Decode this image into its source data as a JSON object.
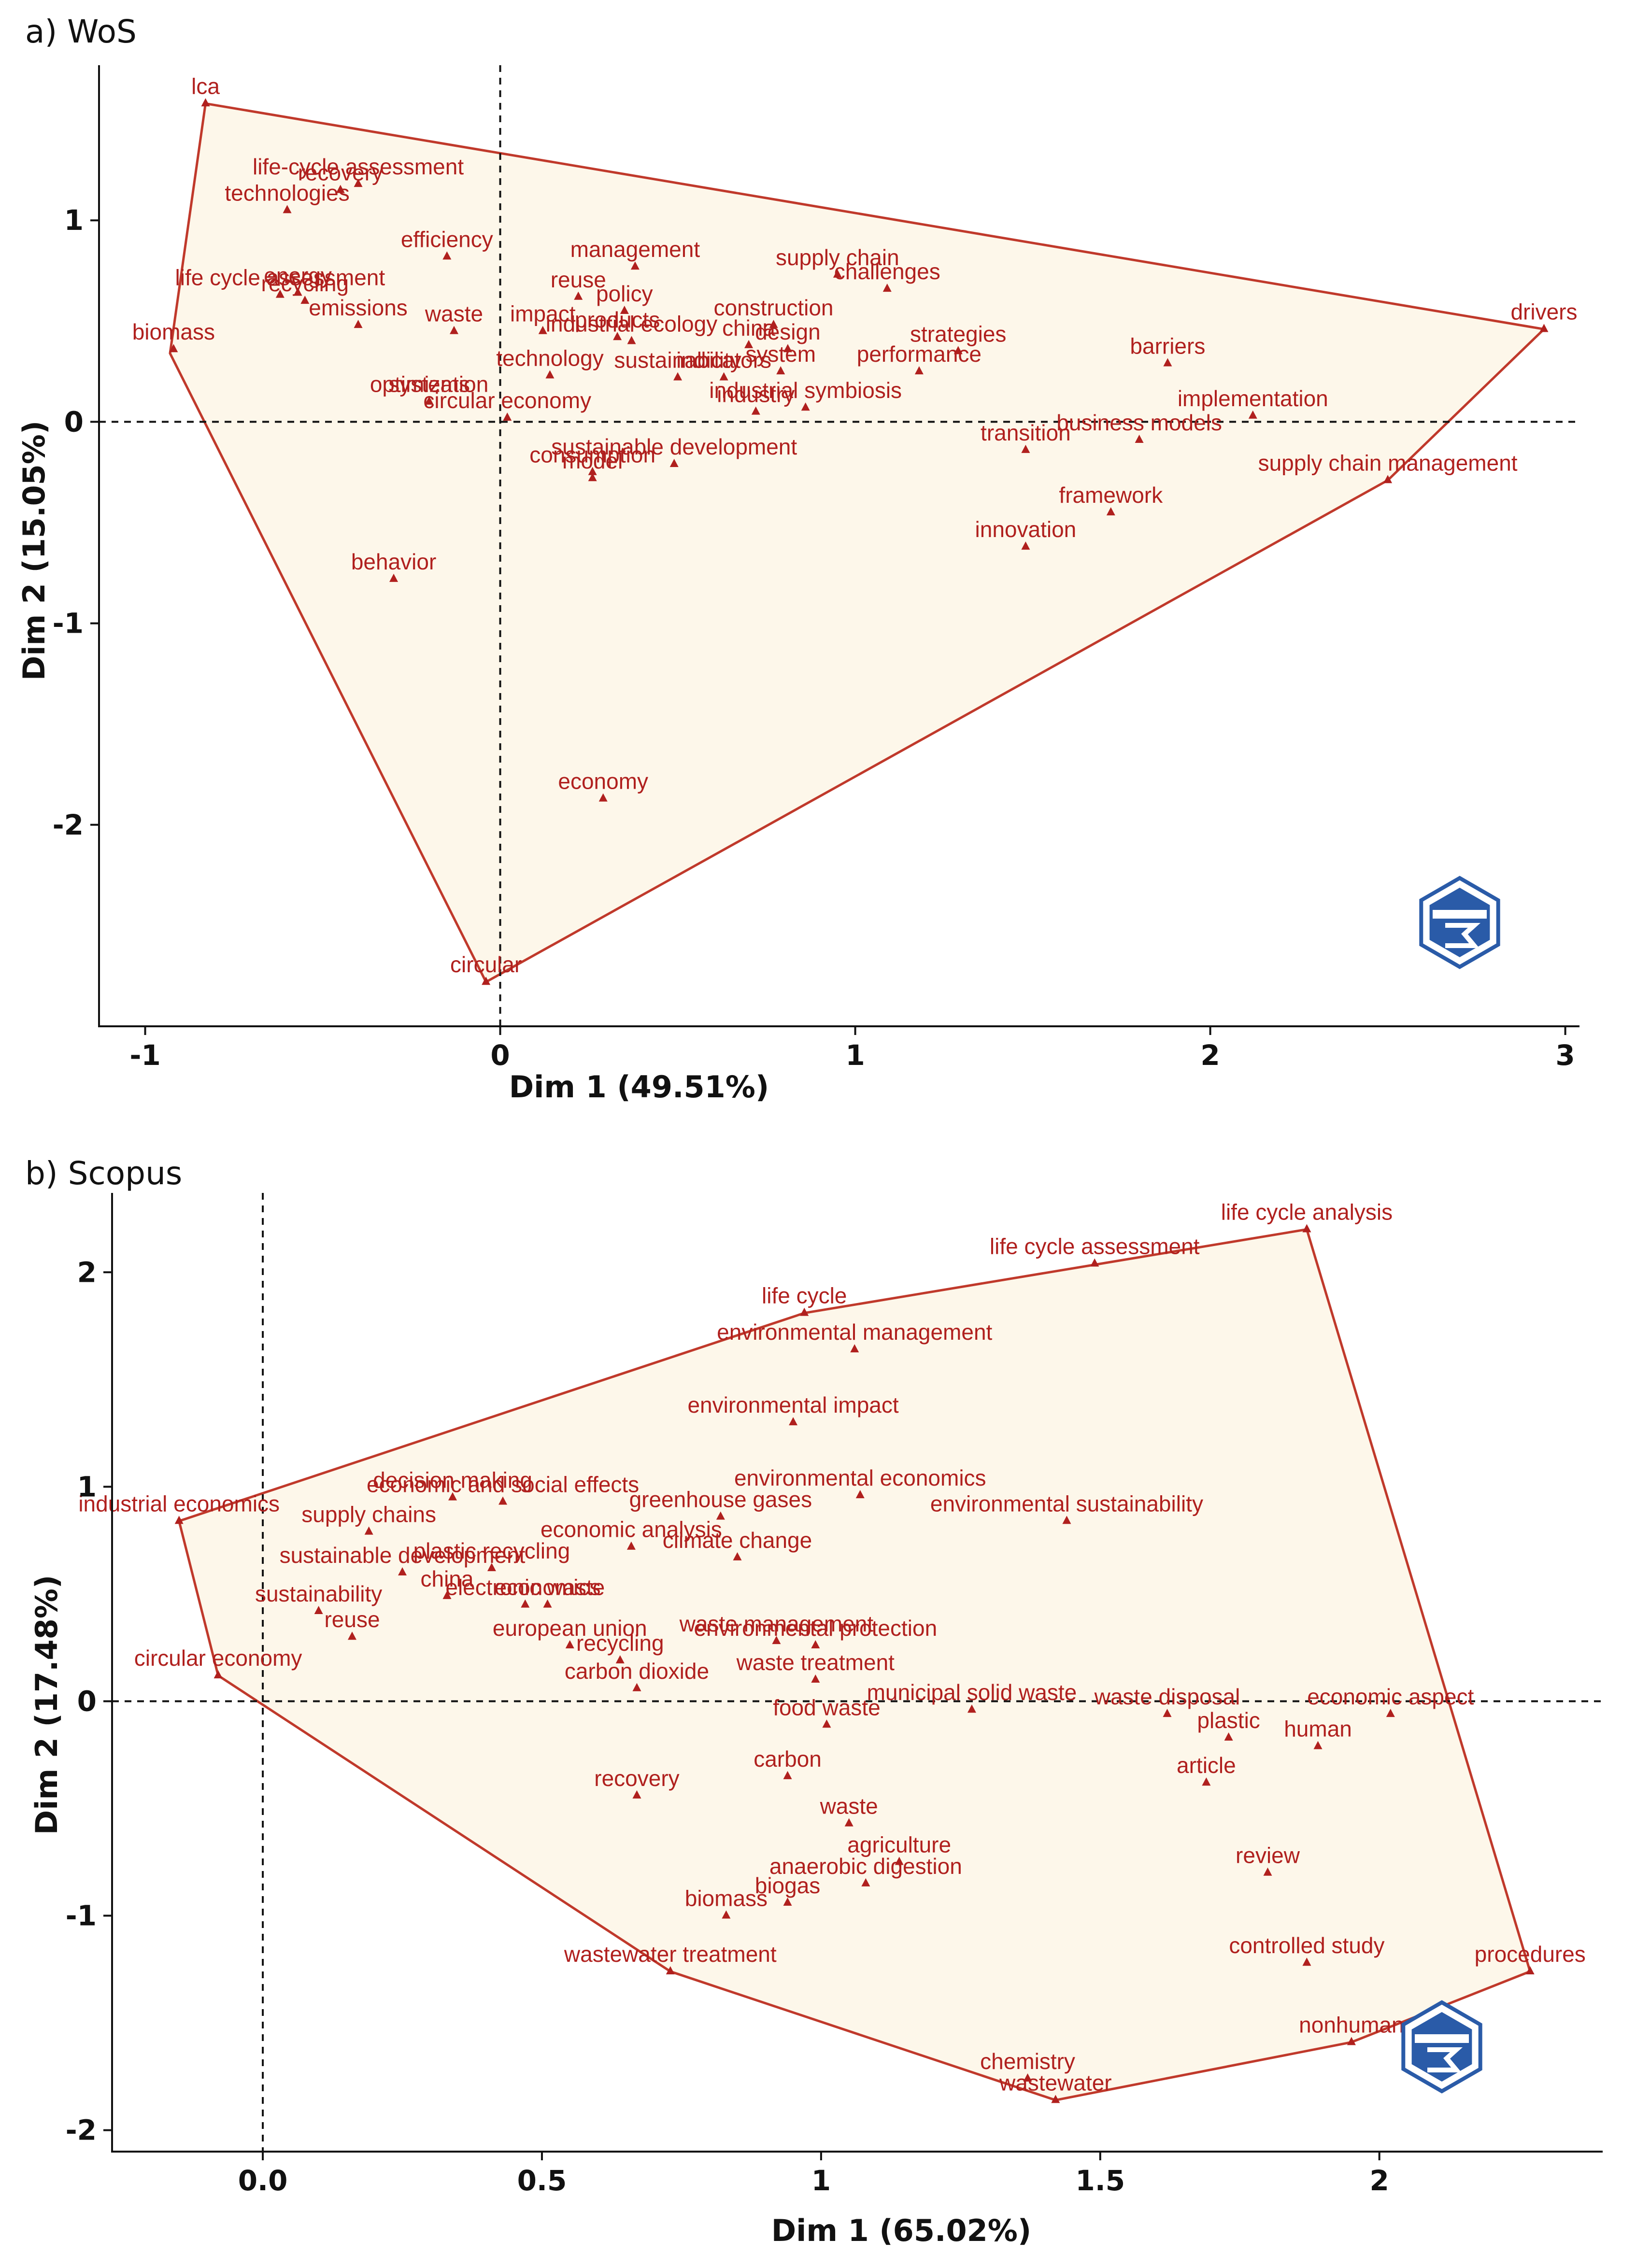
{
  "colors": {
    "accent": "#b0201e",
    "hull_fill": "#fdf7ea",
    "hull_stroke": "#c0392b",
    "logo": "#2a5ba8"
  },
  "logo_icon": "biblioshiny-logo-icon",
  "chart_data": [
    {
      "type": "scatter",
      "title": "a) WoS",
      "xlabel": "Dim 1 (49.51%)",
      "ylabel": "Dim 2 (15.05%)",
      "xlim": [
        -1.13,
        3.04
      ],
      "ylim": [
        -3.0,
        1.77
      ],
      "xticks": [
        -1,
        0,
        1,
        2,
        3
      ],
      "yticks": [
        -2,
        -1,
        0,
        1
      ],
      "grid": false,
      "reference_lines": {
        "x": 0,
        "y": 0
      },
      "hull": [
        [
          -0.83,
          1.58
        ],
        [
          2.94,
          0.46
        ],
        [
          2.5,
          -0.29
        ],
        [
          -0.04,
          -2.78
        ],
        [
          -0.93,
          0.34
        ]
      ],
      "points": [
        {
          "label": "lca",
          "x": -0.83,
          "y": 1.58
        },
        {
          "label": "life-cycle assessment",
          "x": -0.4,
          "y": 1.18
        },
        {
          "label": "recovery",
          "x": -0.45,
          "y": 1.15
        },
        {
          "label": "technologies",
          "x": -0.6,
          "y": 1.05
        },
        {
          "label": "efficiency",
          "x": -0.15,
          "y": 0.82
        },
        {
          "label": "energy",
          "x": -0.57,
          "y": 0.64
        },
        {
          "label": "life cycle assessment",
          "x": -0.62,
          "y": 0.63
        },
        {
          "label": "recycling",
          "x": -0.55,
          "y": 0.6
        },
        {
          "label": "biomass",
          "x": -0.92,
          "y": 0.36
        },
        {
          "label": "emissions",
          "x": -0.4,
          "y": 0.48
        },
        {
          "label": "waste",
          "x": -0.13,
          "y": 0.45
        },
        {
          "label": "systems",
          "x": -0.2,
          "y": 0.1
        },
        {
          "label": "optimization",
          "x": -0.2,
          "y": 0.1
        },
        {
          "label": "impact",
          "x": 0.12,
          "y": 0.45
        },
        {
          "label": "technology",
          "x": 0.14,
          "y": 0.23
        },
        {
          "label": "circular economy",
          "x": 0.02,
          "y": 0.02
        },
        {
          "label": "reuse",
          "x": 0.22,
          "y": 0.62
        },
        {
          "label": "management",
          "x": 0.38,
          "y": 0.77
        },
        {
          "label": "products",
          "x": 0.33,
          "y": 0.42
        },
        {
          "label": "policy",
          "x": 0.35,
          "y": 0.55
        },
        {
          "label": "industrial ecology",
          "x": 0.37,
          "y": 0.4
        },
        {
          "label": "consumption",
          "x": 0.26,
          "y": -0.25
        },
        {
          "label": "model",
          "x": 0.26,
          "y": -0.28
        },
        {
          "label": "sustainability",
          "x": 0.5,
          "y": 0.22
        },
        {
          "label": "indicators",
          "x": 0.63,
          "y": 0.22
        },
        {
          "label": "china",
          "x": 0.7,
          "y": 0.38
        },
        {
          "label": "supply chain",
          "x": 0.95,
          "y": 0.73
        },
        {
          "label": "construction",
          "x": 0.77,
          "y": 0.48
        },
        {
          "label": "design",
          "x": 0.81,
          "y": 0.36
        },
        {
          "label": "challenges",
          "x": 1.09,
          "y": 0.66
        },
        {
          "label": "system",
          "x": 0.79,
          "y": 0.25
        },
        {
          "label": "industry",
          "x": 0.72,
          "y": 0.05
        },
        {
          "label": "industrial symbiosis",
          "x": 0.86,
          "y": 0.07
        },
        {
          "label": "sustainable development",
          "x": 0.49,
          "y": -0.21
        },
        {
          "label": "strategies",
          "x": 1.29,
          "y": 0.35
        },
        {
          "label": "performance",
          "x": 1.18,
          "y": 0.25
        },
        {
          "label": "transition",
          "x": 1.48,
          "y": -0.14
        },
        {
          "label": "innovation",
          "x": 1.48,
          "y": -0.62
        },
        {
          "label": "barriers",
          "x": 1.88,
          "y": 0.29
        },
        {
          "label": "implementation",
          "x": 2.12,
          "y": 0.03
        },
        {
          "label": "business models",
          "x": 1.8,
          "y": -0.09
        },
        {
          "label": "framework",
          "x": 1.72,
          "y": -0.45
        },
        {
          "label": "drivers",
          "x": 2.94,
          "y": 0.46
        },
        {
          "label": "supply chain management",
          "x": 2.5,
          "y": -0.29
        },
        {
          "label": "behavior",
          "x": -0.3,
          "y": -0.78
        },
        {
          "label": "economy",
          "x": 0.29,
          "y": -1.87
        },
        {
          "label": "circular",
          "x": -0.04,
          "y": -2.78
        }
      ]
    },
    {
      "type": "scatter",
      "title": "b) Scopus",
      "xlabel": "Dim 1 (65.02%)",
      "ylabel": "Dim 2 (17.48%)",
      "xlim": [
        -0.27,
        2.4
      ],
      "ylim": [
        -2.1,
        2.37
      ],
      "xticks": [
        0.0,
        0.5,
        1.0,
        1.5,
        2.0
      ],
      "xtick_labels": [
        "0.0",
        "0.5",
        "1",
        "1.5",
        "2"
      ],
      "yticks": [
        -2,
        -1,
        0,
        1,
        2
      ],
      "grid": false,
      "reference_lines": {
        "x": 0,
        "y": 0
      },
      "hull": [
        [
          -0.15,
          0.84
        ],
        [
          0.97,
          1.81
        ],
        [
          1.87,
          2.2
        ],
        [
          2.27,
          -1.26
        ],
        [
          1.95,
          -1.59
        ],
        [
          1.42,
          -1.86
        ],
        [
          0.73,
          -1.26
        ],
        [
          -0.08,
          0.12
        ]
      ],
      "points": [
        {
          "label": "life cycle analysis",
          "x": 1.87,
          "y": 2.2
        },
        {
          "label": "life cycle assessment",
          "x": 1.49,
          "y": 2.04
        },
        {
          "label": "life cycle",
          "x": 0.97,
          "y": 1.81
        },
        {
          "label": "environmental management",
          "x": 1.06,
          "y": 1.64
        },
        {
          "label": "environmental impact",
          "x": 0.95,
          "y": 1.3
        },
        {
          "label": "decision making",
          "x": 0.34,
          "y": 0.95
        },
        {
          "label": "economic and social effects",
          "x": 0.43,
          "y": 0.93
        },
        {
          "label": "environmental economics",
          "x": 1.07,
          "y": 0.96
        },
        {
          "label": "industrial economics",
          "x": -0.15,
          "y": 0.84
        },
        {
          "label": "supply chains",
          "x": 0.19,
          "y": 0.79
        },
        {
          "label": "economic analysis",
          "x": 0.66,
          "y": 0.72
        },
        {
          "label": "greenhouse gases",
          "x": 0.82,
          "y": 0.86
        },
        {
          "label": "environmental sustainability",
          "x": 1.44,
          "y": 0.84
        },
        {
          "label": "sustainable development",
          "x": 0.25,
          "y": 0.6
        },
        {
          "label": "plastic recycling",
          "x": 0.41,
          "y": 0.62
        },
        {
          "label": "climate change",
          "x": 0.85,
          "y": 0.67
        },
        {
          "label": "sustainability",
          "x": 0.1,
          "y": 0.42
        },
        {
          "label": "china",
          "x": 0.33,
          "y": 0.49
        },
        {
          "label": "economics",
          "x": 0.51,
          "y": 0.45
        },
        {
          "label": "electronic waste",
          "x": 0.47,
          "y": 0.45
        },
        {
          "label": "european union",
          "x": 0.55,
          "y": 0.26
        },
        {
          "label": "reuse",
          "x": 0.16,
          "y": 0.3
        },
        {
          "label": "waste management",
          "x": 0.92,
          "y": 0.28
        },
        {
          "label": "environmental protection",
          "x": 0.99,
          "y": 0.26
        },
        {
          "label": "circular economy",
          "x": -0.08,
          "y": 0.12
        },
        {
          "label": "recycling",
          "x": 0.64,
          "y": 0.19
        },
        {
          "label": "carbon dioxide",
          "x": 0.67,
          "y": 0.06
        },
        {
          "label": "waste treatment",
          "x": 0.99,
          "y": 0.1
        },
        {
          "label": "municipal solid waste",
          "x": 1.27,
          "y": -0.04
        },
        {
          "label": "waste disposal",
          "x": 1.62,
          "y": -0.06
        },
        {
          "label": "economic aspect",
          "x": 2.02,
          "y": -0.06
        },
        {
          "label": "human",
          "x": 1.89,
          "y": -0.21
        },
        {
          "label": "plastic",
          "x": 1.73,
          "y": -0.17
        },
        {
          "label": "article",
          "x": 1.69,
          "y": -0.38
        },
        {
          "label": "food waste",
          "x": 1.01,
          "y": -0.11
        },
        {
          "label": "carbon",
          "x": 0.94,
          "y": -0.35
        },
        {
          "label": "recovery",
          "x": 0.67,
          "y": -0.44
        },
        {
          "label": "waste",
          "x": 1.05,
          "y": -0.57
        },
        {
          "label": "agriculture",
          "x": 1.14,
          "y": -0.75
        },
        {
          "label": "review",
          "x": 1.8,
          "y": -0.8
        },
        {
          "label": "biogas",
          "x": 0.94,
          "y": -0.94
        },
        {
          "label": "anaerobic digestion",
          "x": 1.08,
          "y": -0.85
        },
        {
          "label": "biomass",
          "x": 0.83,
          "y": -1.0
        },
        {
          "label": "controlled study",
          "x": 1.87,
          "y": -1.22
        },
        {
          "label": "procedures",
          "x": 2.27,
          "y": -1.26
        },
        {
          "label": "nonhuman",
          "x": 1.95,
          "y": -1.59
        },
        {
          "label": "wastewater treatment",
          "x": 0.73,
          "y": -1.26
        },
        {
          "label": "chemistry",
          "x": 1.37,
          "y": -1.76
        },
        {
          "label": "wastewater",
          "x": 1.42,
          "y": -1.86
        }
      ]
    }
  ]
}
